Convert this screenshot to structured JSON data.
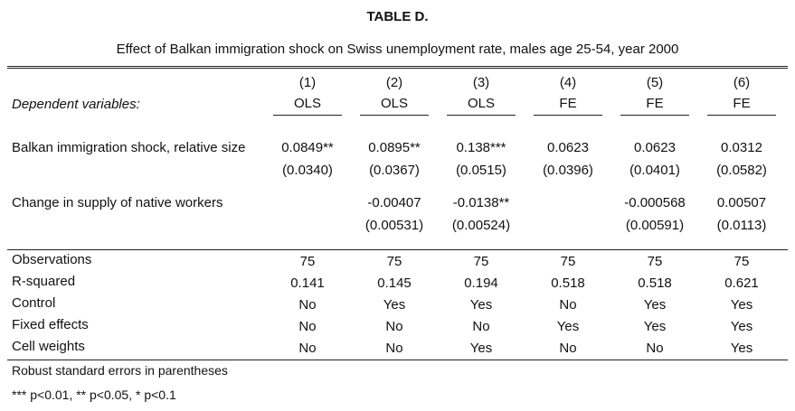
{
  "table": {
    "title": "TABLE D.",
    "subtitle": "Effect of Balkan immigration shock on Swiss unemployment rate, males age 25-54, year 2000",
    "dependent_label": "Dependent variables:",
    "column_numbers": [
      "(1)",
      "(2)",
      "(3)",
      "(4)",
      "(5)",
      "(6)"
    ],
    "column_methods": [
      "OLS",
      "OLS",
      "OLS",
      "FE",
      "FE",
      "FE"
    ],
    "rows": {
      "balkan_shock": {
        "label": "Balkan immigration shock, relative size",
        "coef": [
          "0.0849**",
          "0.0895**",
          "0.138***",
          "0.0623",
          "0.0623",
          "0.0312"
        ],
        "se": [
          "(0.0340)",
          "(0.0367)",
          "(0.0515)",
          "(0.0396)",
          "(0.0401)",
          "(0.0582)"
        ]
      },
      "native_supply": {
        "label": "Change in supply of native workers",
        "coef": [
          "",
          "-0.00407",
          "-0.0138**",
          "",
          "-0.000568",
          "0.00507"
        ],
        "se": [
          "",
          "(0.00531)",
          "(0.00524)",
          "",
          "(0.00591)",
          "(0.0113)"
        ]
      }
    },
    "stats": [
      {
        "label": "Observations",
        "values": [
          "75",
          "75",
          "75",
          "75",
          "75",
          "75"
        ]
      },
      {
        "label": "R-squared",
        "values": [
          "0.141",
          "0.145",
          "0.194",
          "0.518",
          "0.518",
          "0.621"
        ]
      },
      {
        "label": "Control",
        "values": [
          "No",
          "Yes",
          "Yes",
          "No",
          "Yes",
          "Yes"
        ]
      },
      {
        "label": "Fixed effects",
        "values": [
          "No",
          "No",
          "No",
          "Yes",
          "Yes",
          "Yes"
        ]
      },
      {
        "label": "Cell weights",
        "values": [
          "No",
          "No",
          "Yes",
          "No",
          "No",
          "Yes"
        ]
      }
    ],
    "notes": [
      "Robust standard errors in parentheses",
      "*** p<0.01, ** p<0.05, * p<0.1"
    ]
  }
}
